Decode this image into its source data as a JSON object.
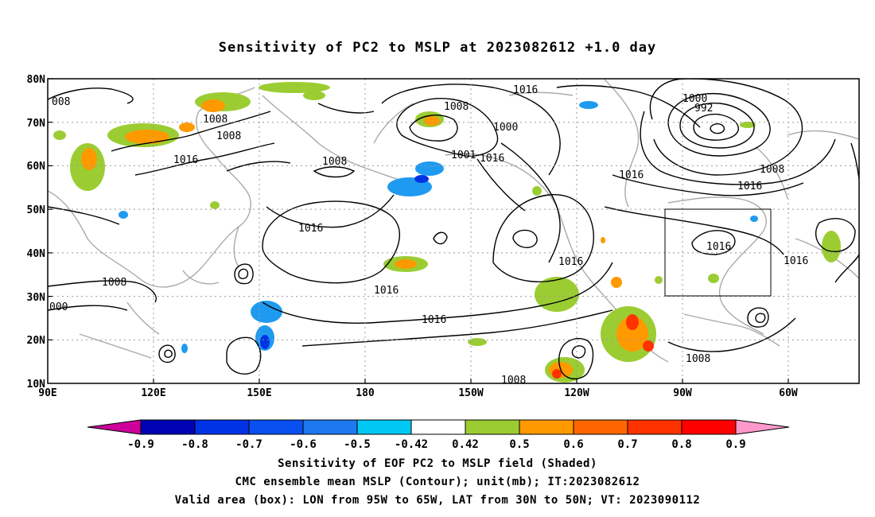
{
  "title": "Sensitivity of PC2 to MSLP at 2023082612 +1.0 day",
  "lat_labels": [
    "80N",
    "70N",
    "60N",
    "50N",
    "40N",
    "30N",
    "20N",
    "10N"
  ],
  "lon_labels": [
    "90E",
    "120E",
    "150E",
    "180",
    "150W",
    "120W",
    "90W",
    "60W"
  ],
  "contour_labels": [
    "008",
    "1008",
    "1008",
    "1016",
    "1008",
    "1008",
    "000",
    "1016",
    "1016",
    "1008",
    "1016",
    "1000",
    "1001",
    "1016",
    "1016",
    "1016",
    "1016",
    "1000",
    "992",
    "1008",
    "1016",
    "1016",
    "1016",
    "1016",
    "1008",
    "1008"
  ],
  "colorbar": {
    "ticks": [
      "-0.9",
      "-0.8",
      "-0.7",
      "-0.6",
      "-0.5",
      "-0.42",
      "0.42",
      "0.5",
      "0.6",
      "0.7",
      "0.8",
      "0.9"
    ],
    "colors": [
      "#cc0099",
      "#0000b4",
      "#0033e6",
      "#0a50f0",
      "#1e78f0",
      "#00c8f5",
      "#ffffff",
      "#9bcd32",
      "#ff9900",
      "#ff6600",
      "#ff3300",
      "#ff0000",
      "#ff99cc"
    ]
  },
  "captions": {
    "line1": "Sensitivity of EOF PC2 to MSLP field (Shaded)",
    "line2": "CMC ensemble mean MSLP (Contour); unit(mb); IT:2023082612",
    "line3": "Valid area (box): LON from 95W to 65W, LAT from 30N to 50N; VT: 2023090112"
  },
  "valid_box": {
    "lon": [
      -95,
      -65
    ],
    "lat": [
      30,
      50
    ]
  }
}
